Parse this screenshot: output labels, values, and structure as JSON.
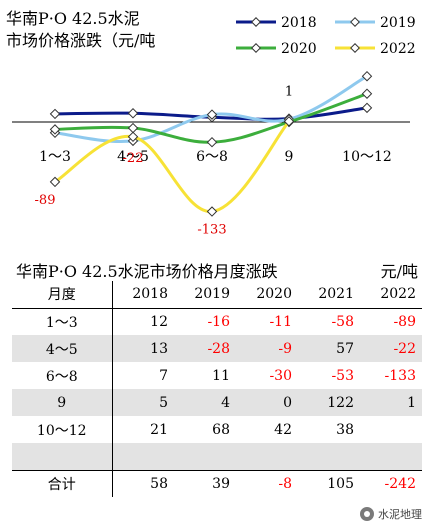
{
  "chart_data": {
    "type": "line",
    "title": "华南P·O 42.5水泥\n市场价格涨跌（元/吨",
    "categories": [
      "1～3",
      "4～5",
      "6～8",
      "9",
      "10～12"
    ],
    "ylim": [
      -140,
      130
    ],
    "grid": false,
    "legend_position": "top-right",
    "series": [
      {
        "name": "2018",
        "color": "#0b1b8a",
        "values": [
          12,
          13,
          7,
          5,
          21
        ]
      },
      {
        "name": "2019",
        "color": "#8ec9ee",
        "values": [
          -16,
          -28,
          11,
          4,
          68
        ]
      },
      {
        "name": "2020",
        "color": "#3cae3c",
        "values": [
          -11,
          -9,
          -30,
          0,
          42
        ]
      },
      {
        "name": "2022",
        "color": "#f7e236",
        "values": [
          -89,
          -22,
          -133,
          1,
          null
        ]
      }
    ],
    "annotations": [
      {
        "series": "2022",
        "index": 0,
        "text": "-89"
      },
      {
        "series": "2022",
        "index": 1,
        "text": "-22"
      },
      {
        "series": "2022",
        "index": 2,
        "text": "-133"
      },
      {
        "series": "2022",
        "index": 3,
        "text": "1"
      }
    ]
  },
  "table": {
    "title": "华南P·O 42.5水泥市场价格月度涨跌",
    "unit": "元/吨",
    "headers": [
      "月度",
      "2018",
      "2019",
      "2020",
      "2021",
      "2022"
    ],
    "rows": [
      {
        "label": "1～3",
        "values": [
          "12",
          "-16",
          "-11",
          "-58",
          "-89"
        ],
        "shade": false
      },
      {
        "label": "4～5",
        "values": [
          "13",
          "-28",
          "-9",
          "57",
          "-22"
        ],
        "shade": true
      },
      {
        "label": "6～8",
        "values": [
          "7",
          "11",
          "-30",
          "-53",
          "-133"
        ],
        "shade": false
      },
      {
        "label": "9",
        "values": [
          "5",
          "4",
          "0",
          "122",
          "1"
        ],
        "shade": true
      },
      {
        "label": "10～12",
        "values": [
          "21",
          "68",
          "42",
          "38",
          ""
        ],
        "shade": false
      },
      {
        "label": "",
        "values": [
          "",
          "",
          "",
          "",
          ""
        ],
        "shade": true
      }
    ],
    "total": {
      "label": "合计",
      "values": [
        "58",
        "39",
        "-8",
        "105",
        "-242"
      ]
    }
  },
  "watermark": {
    "text": "水泥地理"
  }
}
